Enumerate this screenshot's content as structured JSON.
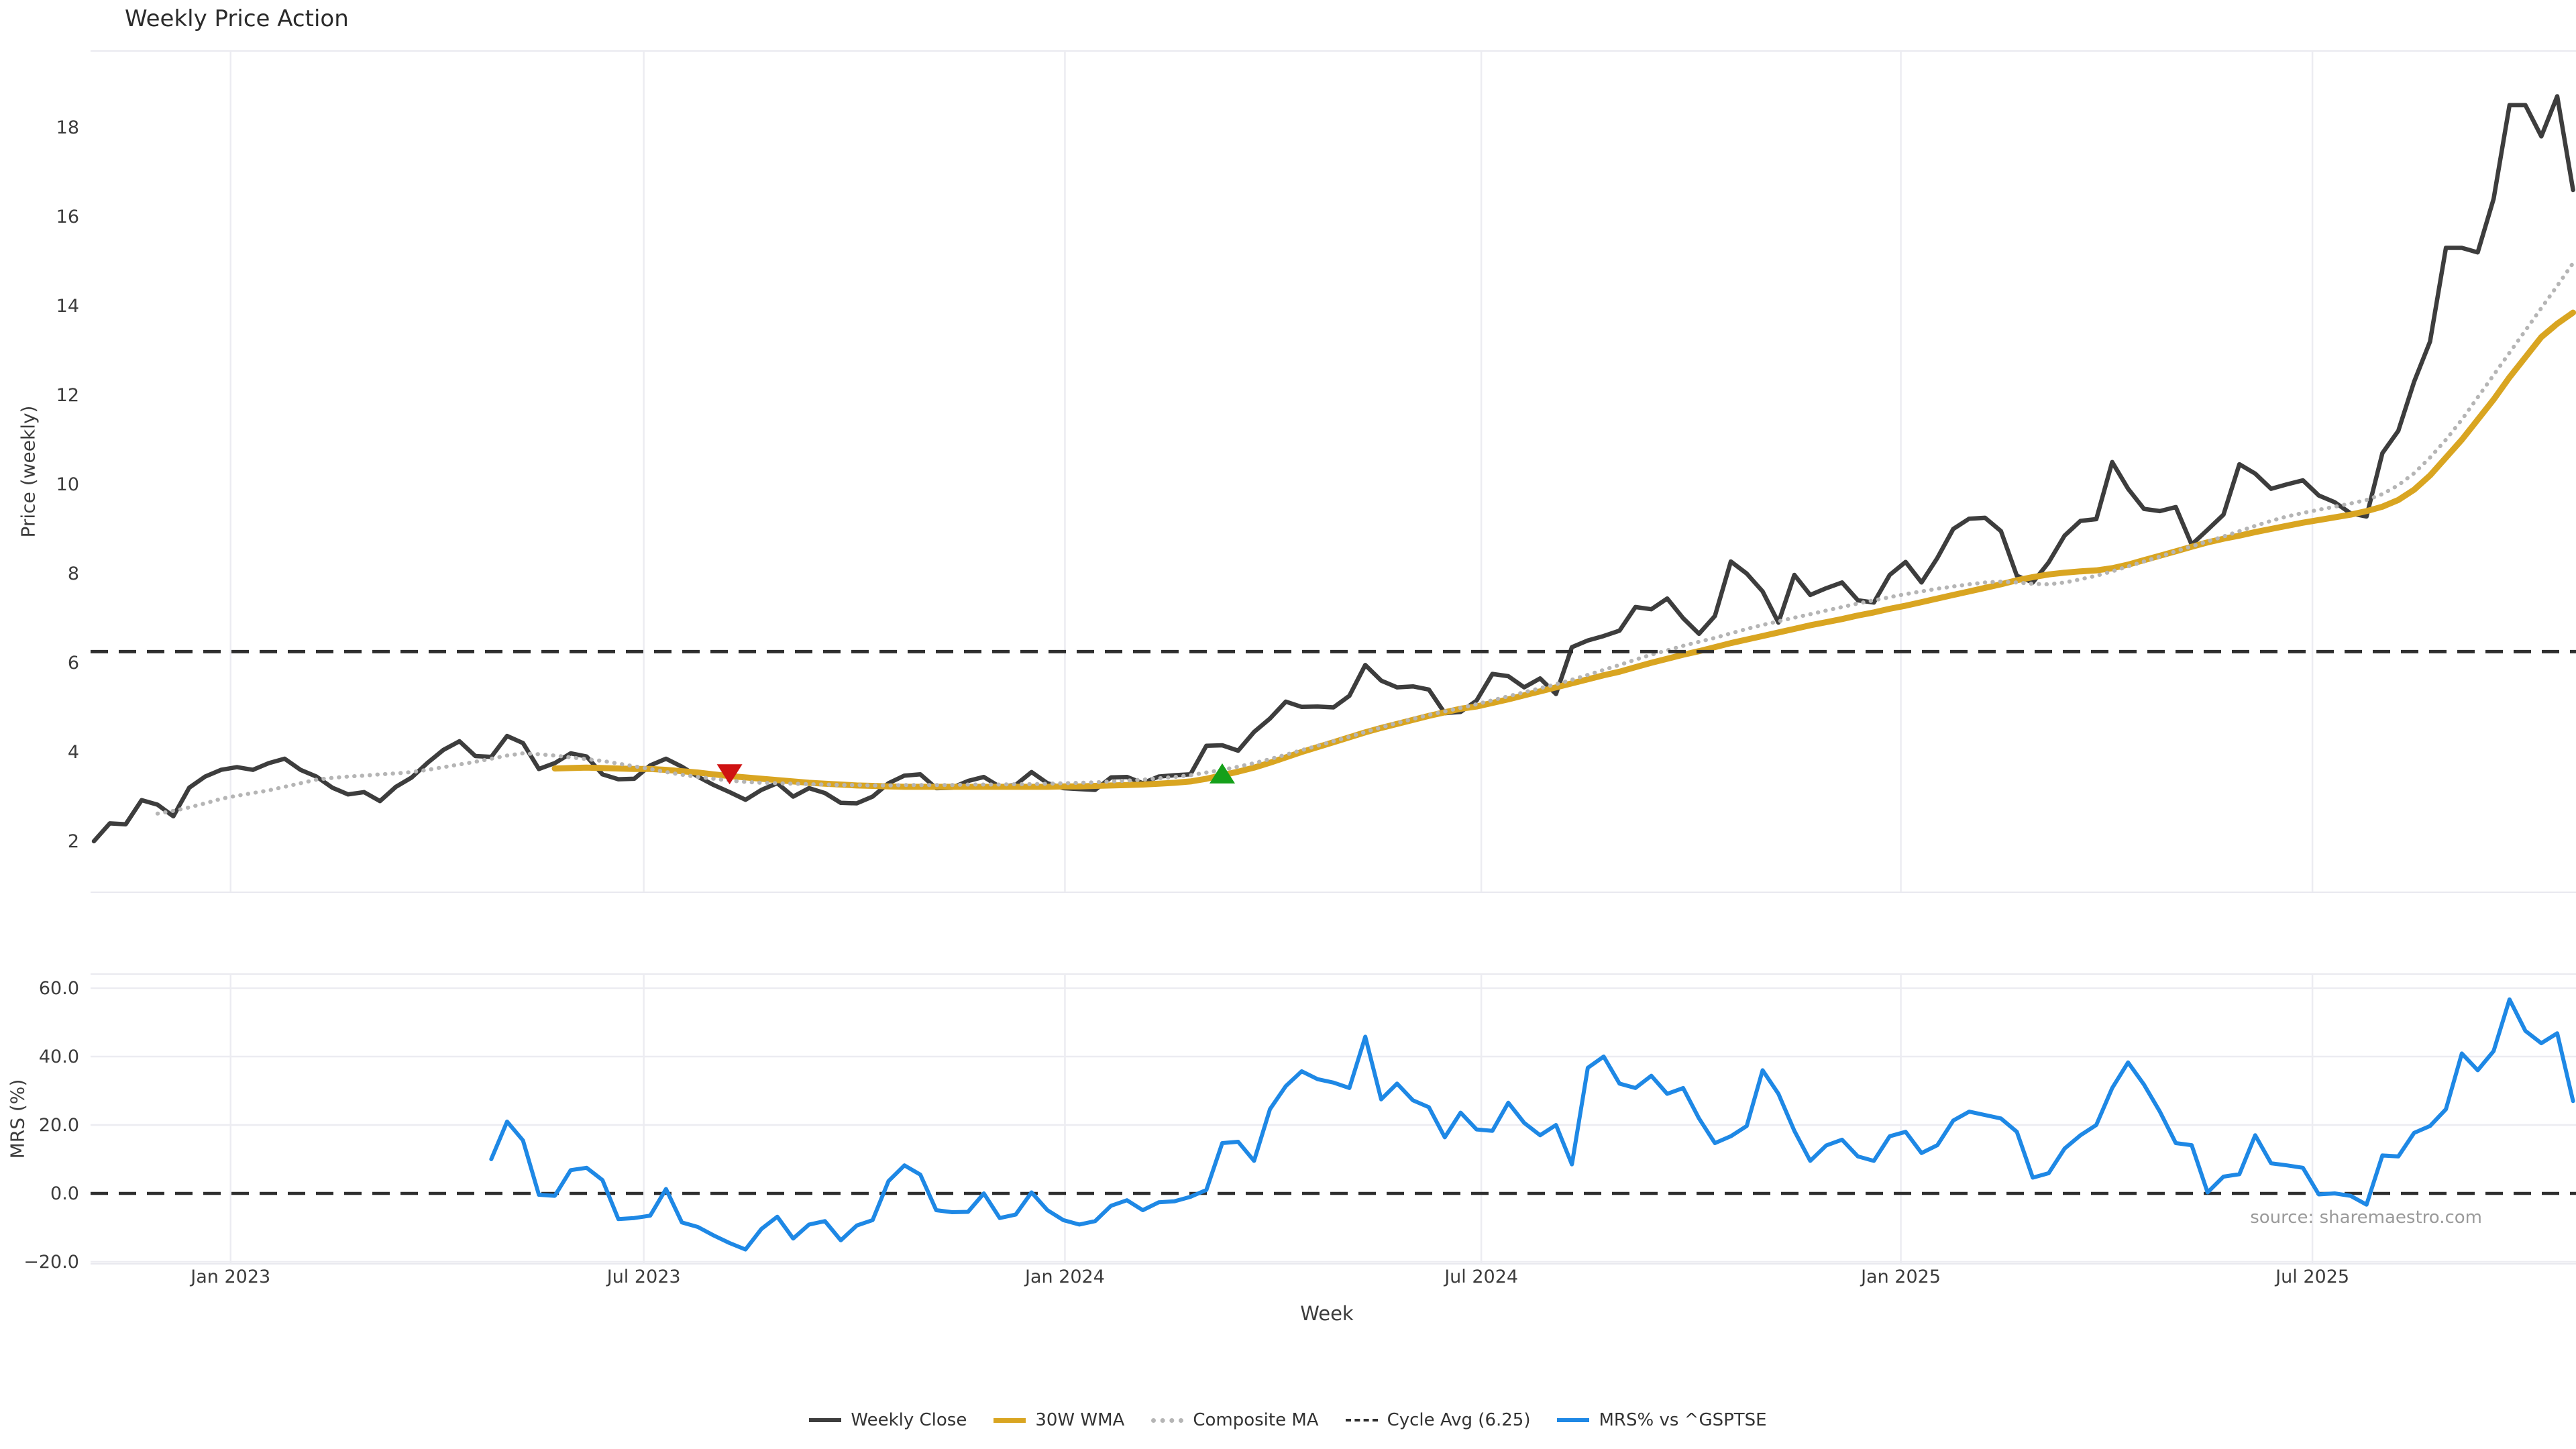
{
  "title": "Weekly Price Action",
  "axes": {
    "price_ylabel": "Price (weekly)",
    "mrs_ylabel": "MRS (%)",
    "xlabel": "Week"
  },
  "source_note": "source: sharemaestro.com",
  "legend": [
    {
      "label": "Weekly Close",
      "color": "#3d3d3d",
      "style": "solid"
    },
    {
      "label": "30W WMA",
      "color": "#d9a521",
      "style": "thick"
    },
    {
      "label": "Composite MA",
      "color": "#b5b5b5",
      "style": "dotted"
    },
    {
      "label": "Cycle Avg (6.25)",
      "color": "#2e2e2e",
      "style": "dashed"
    },
    {
      "label": "MRS% vs ^GSPTSE",
      "color": "#1e88e5",
      "style": "solid"
    }
  ],
  "chart_data": {
    "type": "line",
    "x_unit": "week_index",
    "weeks_total": 157,
    "x_ticks": [
      {
        "week": 8.6,
        "label": "Jan 2023"
      },
      {
        "week": 34.6,
        "label": "Jul 2023"
      },
      {
        "week": 61.1,
        "label": "Jan 2024"
      },
      {
        "week": 87.3,
        "label": "Jul 2024"
      },
      {
        "week": 113.7,
        "label": "Jan 2025"
      },
      {
        "week": 139.6,
        "label": "Jul 2025"
      }
    ],
    "price_panel": {
      "ylim": [
        0.85,
        19.7
      ],
      "yticks": [
        2,
        4,
        6,
        8,
        10,
        12,
        14,
        16,
        18
      ],
      "grid": "vertical-only",
      "cycle_avg": 6.25
    },
    "mrs_panel": {
      "ylim": [
        -25,
        64
      ],
      "yticks": [
        60,
        40,
        20,
        0,
        -20
      ],
      "ytick_labels": [
        "60.0",
        "40.0",
        "20.0",
        "0.0",
        "−20.0"
      ],
      "grid": "horizontal-and-vertical",
      "zero_line": 0.0
    },
    "series": [
      {
        "name": "Weekly Close",
        "panel": "price",
        "color": "#3d3d3d",
        "style": "solid",
        "width": 6.5,
        "values": [
          2.0,
          2.4,
          2.38,
          2.92,
          2.82,
          2.56,
          3.2,
          3.45,
          3.6,
          3.66,
          3.6,
          3.75,
          3.85,
          3.6,
          3.45,
          3.2,
          3.05,
          3.1,
          2.9,
          3.22,
          3.43,
          3.76,
          4.05,
          4.24,
          3.91,
          3.89,
          4.36,
          4.2,
          3.62,
          3.75,
          3.97,
          3.9,
          3.5,
          3.39,
          3.4,
          3.7,
          3.85,
          3.67,
          3.45,
          3.26,
          3.1,
          2.93,
          3.15,
          3.3,
          3.0,
          3.19,
          3.08,
          2.86,
          2.85,
          3.0,
          3.3,
          3.47,
          3.5,
          3.19,
          3.2,
          3.35,
          3.44,
          3.22,
          3.26,
          3.55,
          3.3,
          3.19,
          3.17,
          3.15,
          3.43,
          3.44,
          3.3,
          3.45,
          3.48,
          3.5,
          4.14,
          4.15,
          4.03,
          4.45,
          4.75,
          5.13,
          5.01,
          5.02,
          5.0,
          5.26,
          5.95,
          5.6,
          5.45,
          5.47,
          5.4,
          4.87,
          4.9,
          5.15,
          5.75,
          5.7,
          5.45,
          5.65,
          5.3,
          6.35,
          6.5,
          6.6,
          6.72,
          7.25,
          7.2,
          7.44,
          7.0,
          6.65,
          7.05,
          8.27,
          8.0,
          7.6,
          6.9,
          7.97,
          7.52,
          7.67,
          7.8,
          7.4,
          7.35,
          7.97,
          8.26,
          7.8,
          8.35,
          9.0,
          9.23,
          9.25,
          8.95,
          7.95,
          7.8,
          8.25,
          8.85,
          9.18,
          9.22,
          10.5,
          9.9,
          9.45,
          9.4,
          9.49,
          8.65,
          8.98,
          9.32,
          10.45,
          10.24,
          9.9,
          10.0,
          10.09,
          9.75,
          9.6,
          9.35,
          9.28,
          10.7,
          11.2,
          12.3,
          13.2,
          15.3,
          15.3,
          15.2,
          16.4,
          18.5,
          18.5,
          17.8,
          18.7,
          16.6
        ]
      },
      {
        "name": "30W WMA",
        "panel": "price",
        "color": "#d9a521",
        "style": "solid",
        "width": 9,
        "values": [
          null,
          null,
          null,
          null,
          null,
          null,
          null,
          null,
          null,
          null,
          null,
          null,
          null,
          null,
          null,
          null,
          null,
          null,
          null,
          null,
          null,
          null,
          null,
          null,
          null,
          null,
          null,
          null,
          null,
          3.63,
          3.64,
          3.65,
          3.64,
          3.63,
          3.62,
          3.62,
          3.6,
          3.57,
          3.54,
          3.5,
          3.46,
          3.43,
          3.4,
          3.37,
          3.34,
          3.31,
          3.29,
          3.27,
          3.25,
          3.24,
          3.23,
          3.22,
          3.22,
          3.22,
          3.22,
          3.22,
          3.22,
          3.22,
          3.22,
          3.22,
          3.22,
          3.23,
          3.23,
          3.24,
          3.25,
          3.26,
          3.27,
          3.29,
          3.31,
          3.34,
          3.4,
          3.48,
          3.56,
          3.65,
          3.76,
          3.88,
          4.0,
          4.11,
          4.22,
          4.33,
          4.44,
          4.54,
          4.63,
          4.72,
          4.81,
          4.89,
          4.97,
          5.02,
          5.1,
          5.18,
          5.27,
          5.36,
          5.45,
          5.54,
          5.63,
          5.72,
          5.8,
          5.9,
          6.0,
          6.09,
          6.18,
          6.26,
          6.35,
          6.44,
          6.52,
          6.6,
          6.68,
          6.76,
          6.84,
          6.91,
          6.98,
          7.06,
          7.13,
          7.21,
          7.28,
          7.36,
          7.44,
          7.52,
          7.6,
          7.68,
          7.76,
          7.85,
          7.92,
          7.98,
          8.02,
          8.05,
          8.07,
          8.12,
          8.2,
          8.3,
          8.4,
          8.5,
          8.6,
          8.7,
          8.78,
          8.85,
          8.93,
          9.0,
          9.07,
          9.14,
          9.2,
          9.26,
          9.32,
          9.4,
          9.5,
          9.65,
          9.88,
          10.2,
          10.6,
          11.0,
          11.45,
          11.9,
          12.4,
          12.85,
          13.3,
          13.6,
          13.85
        ]
      },
      {
        "name": "Composite MA",
        "panel": "price",
        "color": "#b5b5b5",
        "style": "dotted",
        "width": 6,
        "values": [
          null,
          null,
          null,
          null,
          2.62,
          2.68,
          2.76,
          2.85,
          2.95,
          3.02,
          3.08,
          3.14,
          3.22,
          3.3,
          3.38,
          3.42,
          3.45,
          3.47,
          3.5,
          3.52,
          3.55,
          3.6,
          3.66,
          3.72,
          3.78,
          3.85,
          3.92,
          3.97,
          3.95,
          3.92,
          3.88,
          3.84,
          3.8,
          3.74,
          3.68,
          3.62,
          3.55,
          3.49,
          3.44,
          3.4,
          3.36,
          3.33,
          3.31,
          3.3,
          3.29,
          3.28,
          3.27,
          3.26,
          3.26,
          3.25,
          3.25,
          3.26,
          3.26,
          3.26,
          3.26,
          3.27,
          3.27,
          3.27,
          3.28,
          3.28,
          3.29,
          3.3,
          3.31,
          3.32,
          3.34,
          3.36,
          3.38,
          3.41,
          3.44,
          3.48,
          3.54,
          3.6,
          3.67,
          3.75,
          3.84,
          3.94,
          4.04,
          4.14,
          4.24,
          4.34,
          4.45,
          4.55,
          4.65,
          4.74,
          4.83,
          4.91,
          4.99,
          5.07,
          5.16,
          5.25,
          5.34,
          5.43,
          5.52,
          5.62,
          5.73,
          5.84,
          5.95,
          6.07,
          6.18,
          6.28,
          6.38,
          6.47,
          6.56,
          6.66,
          6.76,
          6.85,
          6.93,
          7.01,
          7.09,
          7.17,
          7.25,
          7.33,
          7.4,
          7.47,
          7.54,
          7.6,
          7.66,
          7.71,
          7.76,
          7.8,
          7.82,
          7.8,
          7.77,
          7.76,
          7.8,
          7.87,
          7.95,
          8.05,
          8.16,
          8.27,
          8.38,
          8.5,
          8.61,
          8.72,
          8.83,
          8.95,
          9.07,
          9.18,
          9.28,
          9.36,
          9.43,
          9.5,
          9.57,
          9.65,
          9.78,
          9.98,
          10.25,
          10.6,
          11.0,
          11.45,
          11.95,
          12.45,
          12.95,
          13.45,
          13.95,
          14.45,
          14.96
        ]
      },
      {
        "name": "Cycle Avg (6.25)",
        "panel": "price",
        "color": "#2e2e2e",
        "style": "dashed",
        "width": 5,
        "value": 6.25
      },
      {
        "name": "MRS% vs ^GSPTSE",
        "panel": "mrs",
        "color": "#1e88e5",
        "style": "solid",
        "width": 6,
        "values": [
          null,
          null,
          null,
          null,
          null,
          null,
          null,
          null,
          null,
          null,
          null,
          null,
          null,
          null,
          null,
          null,
          null,
          null,
          null,
          null,
          null,
          null,
          null,
          null,
          null,
          10.0,
          21.0,
          15.5,
          -0.4,
          -0.7,
          6.8,
          7.5,
          3.9,
          -7.5,
          -7.2,
          -6.5,
          1.3,
          -8.5,
          -9.8,
          -12.3,
          -14.5,
          -16.4,
          -10.4,
          -6.8,
          -13.2,
          -9.1,
          -8.1,
          -13.7,
          -9.4,
          -7.8,
          3.6,
          8.2,
          5.5,
          -4.9,
          -5.5,
          -5.4,
          0.0,
          -7.2,
          -6.2,
          0.3,
          -4.9,
          -7.8,
          -9.1,
          -8.1,
          -3.6,
          -2.0,
          -4.9,
          -2.6,
          -2.3,
          -1.0,
          1.0,
          14.7,
          15.1,
          9.5,
          24.6,
          31.4,
          35.7,
          33.4,
          32.4,
          30.8,
          45.8,
          27.5,
          32.1,
          27.2,
          25.2,
          16.4,
          23.6,
          18.7,
          18.3,
          26.5,
          20.6,
          17.0,
          20.0,
          8.5,
          36.7,
          40.0,
          32.1,
          30.8,
          34.4,
          29.1,
          30.8,
          21.9,
          14.7,
          16.7,
          19.7,
          36.0,
          29.1,
          18.3,
          9.5,
          14.0,
          15.7,
          10.8,
          9.5,
          16.7,
          18.0,
          11.8,
          14.1,
          21.3,
          23.9,
          22.9,
          21.9,
          18.0,
          4.6,
          5.9,
          13.1,
          17.0,
          20.0,
          30.8,
          38.3,
          31.8,
          23.9,
          14.7,
          14.1,
          0.3,
          4.9,
          5.6,
          17.0,
          8.8,
          8.2,
          7.5,
          -0.3,
          0.0,
          -0.7,
          -3.3,
          11.1,
          10.8,
          17.7,
          19.7,
          24.6,
          40.9,
          36.0,
          41.6,
          56.7,
          47.5,
          43.9,
          46.8,
          27.0
        ]
      }
    ],
    "markers": [
      {
        "type": "sell",
        "shape": "triangle-down",
        "color": "#cf1212",
        "week": 40,
        "price": 3.5
      },
      {
        "type": "buy",
        "shape": "triangle-up",
        "color": "#15a01a",
        "week": 71,
        "price": 3.52
      }
    ]
  }
}
